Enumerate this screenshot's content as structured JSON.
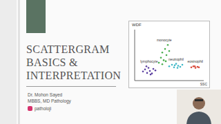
{
  "slide": {
    "title_lines": [
      "SCATTERGRAM",
      "BASICS &",
      "INTERPRETATION"
    ],
    "author": "Dr. Mohon Sayed",
    "credentials": "MBBS, MD Pathology",
    "handle": "patholoji"
  },
  "chart_data": {
    "type": "scatter",
    "title": "WDF",
    "x_label": "SSC",
    "xlim": [
      0,
      100
    ],
    "ylim": [
      0,
      100
    ],
    "tick_labels": false,
    "series": [
      {
        "name": "lymphocyte",
        "color": "#5b3fa0",
        "x": [
          12,
          15,
          18,
          20,
          22,
          25,
          27,
          30,
          17,
          23
        ],
        "y": [
          18,
          22,
          15,
          25,
          19,
          14,
          23,
          20,
          28,
          12
        ]
      },
      {
        "name": "monocyte",
        "color": "#4caf50",
        "x": [
          35,
          38,
          40,
          42,
          44,
          46,
          48,
          40,
          45,
          50
        ],
        "y": [
          35,
          45,
          55,
          40,
          62,
          50,
          70,
          32,
          38,
          58
        ]
      },
      {
        "name": "neutrophil",
        "color": "#3fb8c8",
        "x": [
          50,
          54,
          57,
          60,
          63,
          66,
          69,
          58,
          62
        ],
        "y": [
          28,
          31,
          26,
          33,
          29,
          27,
          31,
          30,
          25
        ]
      },
      {
        "name": "eosinophil",
        "color": "#d84a3a",
        "x": [
          82,
          85,
          88,
          91,
          93,
          87
        ],
        "y": [
          26,
          28,
          25,
          27,
          26,
          28
        ]
      }
    ]
  }
}
